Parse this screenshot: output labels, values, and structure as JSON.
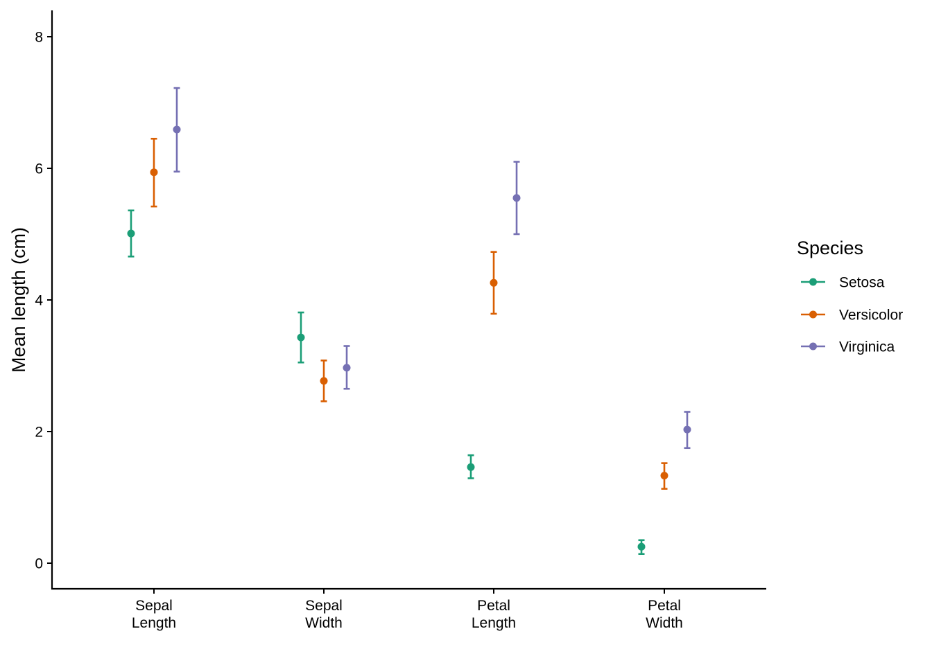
{
  "chart_data": {
    "type": "errorbar",
    "title": "",
    "xlabel": "",
    "ylabel": "Mean length (cm)",
    "ylim": [
      -0.4,
      8.4
    ],
    "yticks": [
      0,
      2,
      4,
      6,
      8
    ],
    "grid": false,
    "legend_position": "right",
    "legend_title": "Species",
    "categories": [
      [
        "Sepal",
        "Length"
      ],
      [
        "Sepal",
        "Width"
      ],
      [
        "Petal",
        "Length"
      ],
      [
        "Petal",
        "Width"
      ]
    ],
    "series": [
      {
        "name": "Setosa",
        "color": "#1b9e77",
        "values": [
          5.01,
          3.43,
          1.46,
          0.25
        ],
        "lower": [
          4.66,
          3.05,
          1.29,
          0.14
        ],
        "upper": [
          5.36,
          3.81,
          1.64,
          0.35
        ]
      },
      {
        "name": "Versicolor",
        "color": "#d95f02",
        "values": [
          5.94,
          2.77,
          4.26,
          1.33
        ],
        "lower": [
          5.42,
          2.46,
          3.79,
          1.13
        ],
        "upper": [
          6.45,
          3.08,
          4.73,
          1.52
        ]
      },
      {
        "name": "Virginica",
        "color": "#7570b3",
        "values": [
          6.59,
          2.97,
          5.55,
          2.03
        ],
        "lower": [
          5.95,
          2.65,
          5.0,
          1.75
        ],
        "upper": [
          7.22,
          3.3,
          6.1,
          2.3
        ]
      }
    ]
  }
}
